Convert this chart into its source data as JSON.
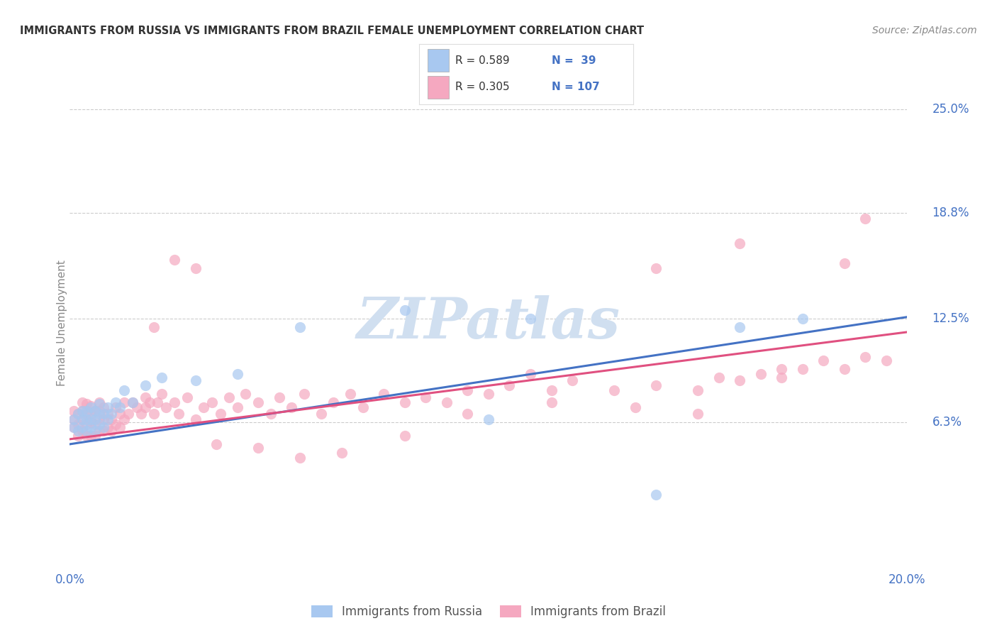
{
  "title": "IMMIGRANTS FROM RUSSIA VS IMMIGRANTS FROM BRAZIL FEMALE UNEMPLOYMENT CORRELATION CHART",
  "source": "Source: ZipAtlas.com",
  "ylabel": "Female Unemployment",
  "x_min": 0.0,
  "x_max": 0.2,
  "y_min": -0.025,
  "y_max": 0.27,
  "x_ticks": [
    0.0,
    0.05,
    0.1,
    0.15,
    0.2
  ],
  "x_tick_labels": [
    "0.0%",
    "",
    "",
    "",
    "20.0%"
  ],
  "y_tick_values": [
    0.063,
    0.125,
    0.188,
    0.25
  ],
  "y_tick_labels": [
    "6.3%",
    "12.5%",
    "18.8%",
    "25.0%"
  ],
  "legend_R1": "0.589",
  "legend_N1": "39",
  "legend_R2": "0.305",
  "legend_N2": "107",
  "color_russia": "#a8c8f0",
  "color_brazil": "#f5a8c0",
  "color_russia_line": "#4472c4",
  "color_brazil_line": "#e05080",
  "color_axis_labels": "#4472c4",
  "background_color": "#ffffff",
  "watermark_color": "#d0dff0",
  "russia_x": [
    0.001,
    0.001,
    0.002,
    0.002,
    0.003,
    0.003,
    0.003,
    0.004,
    0.004,
    0.004,
    0.005,
    0.005,
    0.005,
    0.006,
    0.006,
    0.006,
    0.007,
    0.007,
    0.007,
    0.008,
    0.008,
    0.009,
    0.009,
    0.01,
    0.011,
    0.012,
    0.013,
    0.015,
    0.018,
    0.022,
    0.03,
    0.04,
    0.055,
    0.08,
    0.1,
    0.11,
    0.14,
    0.16,
    0.175
  ],
  "russia_y": [
    0.06,
    0.065,
    0.058,
    0.068,
    0.06,
    0.065,
    0.07,
    0.058,
    0.065,
    0.07,
    0.06,
    0.065,
    0.072,
    0.058,
    0.065,
    0.07,
    0.062,
    0.068,
    0.074,
    0.06,
    0.068,
    0.065,
    0.072,
    0.068,
    0.075,
    0.072,
    0.082,
    0.075,
    0.085,
    0.09,
    0.088,
    0.092,
    0.12,
    0.13,
    0.065,
    0.125,
    0.02,
    0.12,
    0.125
  ],
  "brazil_x": [
    0.001,
    0.001,
    0.001,
    0.002,
    0.002,
    0.002,
    0.003,
    0.003,
    0.003,
    0.003,
    0.004,
    0.004,
    0.004,
    0.004,
    0.005,
    0.005,
    0.005,
    0.005,
    0.006,
    0.006,
    0.006,
    0.007,
    0.007,
    0.007,
    0.007,
    0.008,
    0.008,
    0.008,
    0.009,
    0.009,
    0.01,
    0.01,
    0.011,
    0.011,
    0.012,
    0.012,
    0.013,
    0.013,
    0.014,
    0.015,
    0.016,
    0.017,
    0.018,
    0.018,
    0.019,
    0.02,
    0.021,
    0.022,
    0.023,
    0.025,
    0.026,
    0.028,
    0.03,
    0.032,
    0.034,
    0.036,
    0.038,
    0.04,
    0.042,
    0.045,
    0.048,
    0.05,
    0.053,
    0.056,
    0.06,
    0.063,
    0.067,
    0.07,
    0.075,
    0.08,
    0.085,
    0.09,
    0.095,
    0.1,
    0.105,
    0.11,
    0.115,
    0.12,
    0.13,
    0.14,
    0.15,
    0.155,
    0.16,
    0.165,
    0.17,
    0.175,
    0.18,
    0.185,
    0.19,
    0.195,
    0.03,
    0.02,
    0.035,
    0.025,
    0.045,
    0.055,
    0.065,
    0.08,
    0.095,
    0.115,
    0.135,
    0.15,
    0.17,
    0.185,
    0.19,
    0.16,
    0.14
  ],
  "brazil_y": [
    0.06,
    0.065,
    0.07,
    0.055,
    0.062,
    0.068,
    0.058,
    0.065,
    0.07,
    0.075,
    0.055,
    0.062,
    0.068,
    0.074,
    0.055,
    0.063,
    0.068,
    0.073,
    0.055,
    0.062,
    0.07,
    0.058,
    0.065,
    0.07,
    0.075,
    0.058,
    0.065,
    0.072,
    0.06,
    0.068,
    0.058,
    0.065,
    0.062,
    0.072,
    0.06,
    0.068,
    0.065,
    0.075,
    0.068,
    0.075,
    0.072,
    0.068,
    0.072,
    0.078,
    0.075,
    0.068,
    0.075,
    0.08,
    0.072,
    0.075,
    0.068,
    0.078,
    0.065,
    0.072,
    0.075,
    0.068,
    0.078,
    0.072,
    0.08,
    0.075,
    0.068,
    0.078,
    0.072,
    0.08,
    0.068,
    0.075,
    0.08,
    0.072,
    0.08,
    0.075,
    0.078,
    0.075,
    0.082,
    0.08,
    0.085,
    0.092,
    0.082,
    0.088,
    0.082,
    0.085,
    0.082,
    0.09,
    0.088,
    0.092,
    0.09,
    0.095,
    0.1,
    0.095,
    0.102,
    0.1,
    0.155,
    0.12,
    0.05,
    0.16,
    0.048,
    0.042,
    0.045,
    0.055,
    0.068,
    0.075,
    0.072,
    0.068,
    0.095,
    0.158,
    0.185,
    0.17,
    0.155
  ]
}
